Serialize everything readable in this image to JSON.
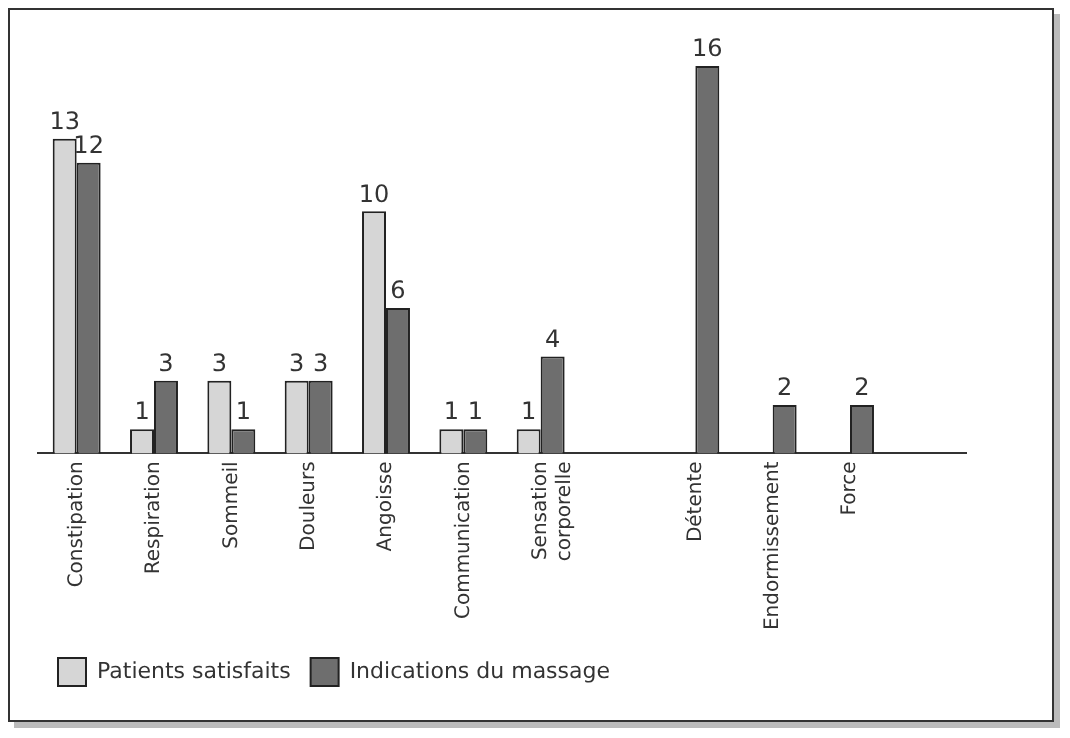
{
  "chart_data": {
    "type": "bar",
    "categories": [
      "Constipation",
      "Respiration",
      "Sommeil",
      "Douleurs",
      "Angoisse",
      "Communication",
      "Sensation corporelle",
      null,
      "Détente",
      "Endormissement",
      "Force",
      null
    ],
    "series": [
      {
        "name": "Patients satisfaits",
        "color": "#d6d6d6",
        "values": [
          13,
          1,
          3,
          3,
          10,
          1,
          1,
          null,
          null,
          null,
          null,
          null
        ]
      },
      {
        "name": "Indications du massage",
        "color": "#6e6e6e",
        "values": [
          12,
          3,
          1,
          3,
          6,
          1,
          4,
          null,
          16,
          2,
          2,
          null
        ]
      }
    ],
    "data_labels": true,
    "grid": false,
    "legend": "bottom left"
  }
}
